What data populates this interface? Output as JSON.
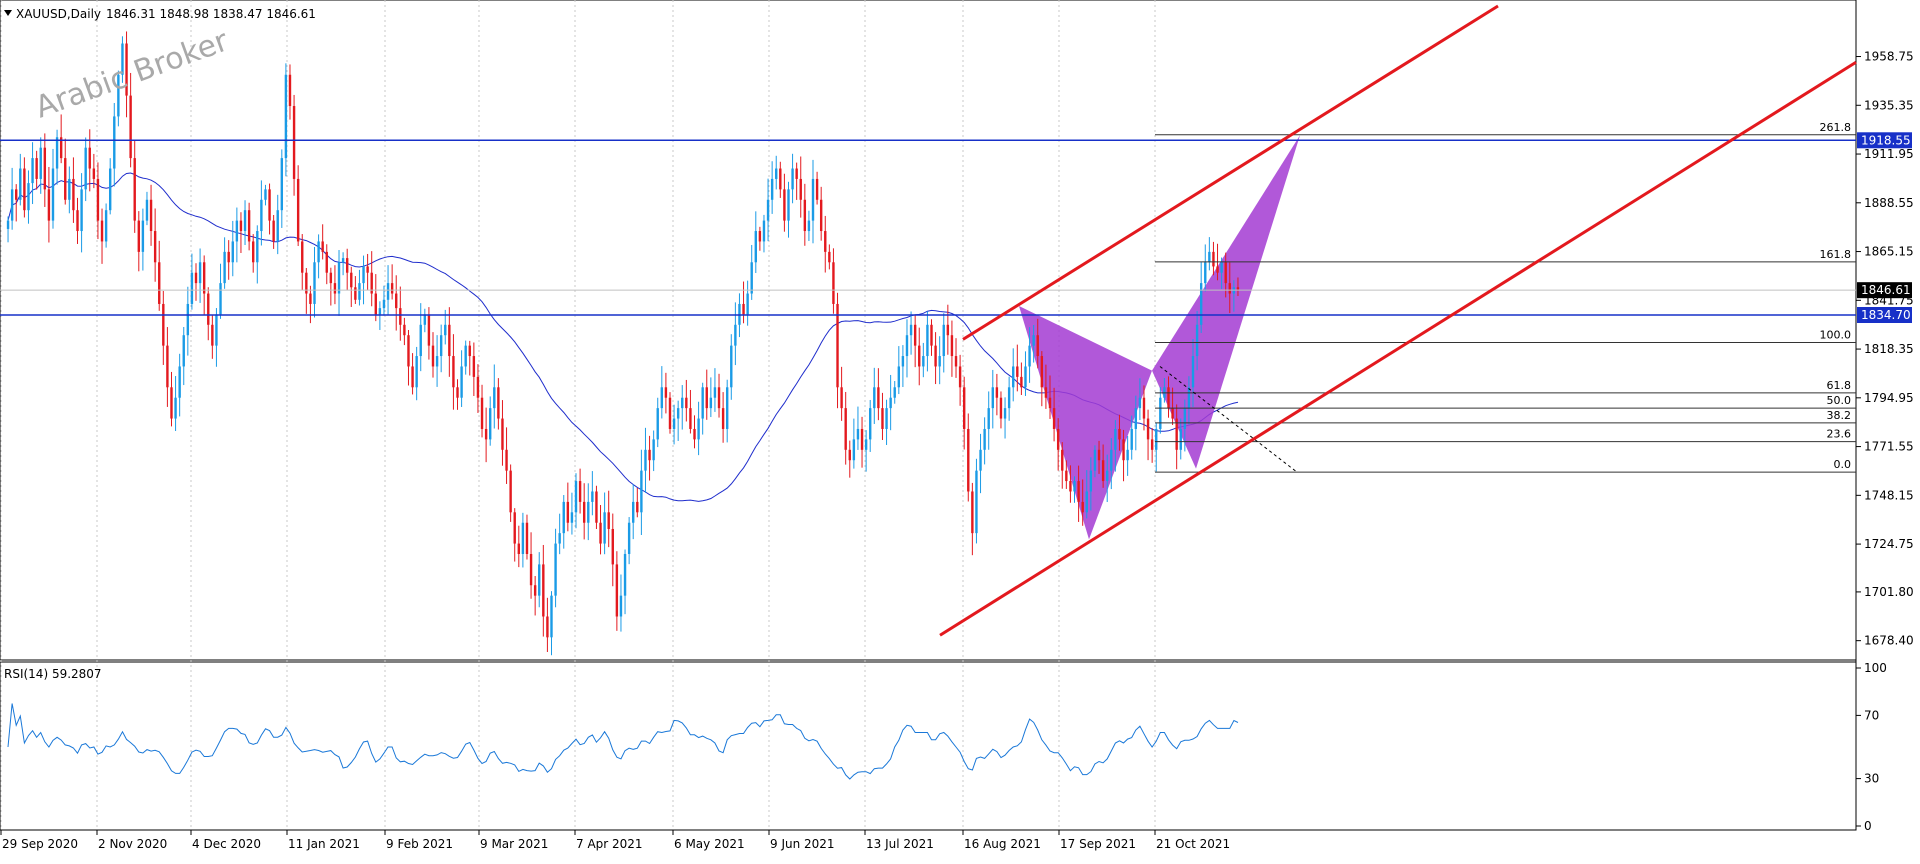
{
  "header": {
    "symbol_label": "XAUUSD,Daily",
    "ohlc": "1846.31 1848.98 1838.47 1846.61"
  },
  "watermark": "Arabic Broker",
  "colors": {
    "bull": "#1a9be6",
    "bear": "#e3191e",
    "ma": "#1f2dcc",
    "channel": "#e3191e",
    "level_line": "#1730c8",
    "pattern_fill": "#a33bd2",
    "rsi": "#1a78d8",
    "fib": "#333333"
  },
  "chart_data": [
    {
      "type": "candlestick",
      "title": "XAUUSD,Daily",
      "x_tick_labels": [
        "29 Sep 2020",
        "2 Nov 2020",
        "4 Dec 2020",
        "11 Jan 2021",
        "9 Feb 2021",
        "9 Mar 2021",
        "7 Apr 2021",
        "6 May 2021",
        "9 Jun 2021",
        "13 Jul 2021",
        "16 Aug 2021",
        "17 Sep 2021",
        "21 Oct 2021"
      ],
      "y_tick_labels": [
        "1958.75",
        "1935.35",
        "1911.95",
        "1888.55",
        "1865.15",
        "1841.75",
        "1818.35",
        "1794.95",
        "1771.55",
        "1748.15",
        "1724.75",
        "1701.80",
        "1678.40"
      ],
      "ylim": [
        1672,
        1983
      ],
      "current_price": "1846.61",
      "horizontal_levels": [
        {
          "label": "1918.55",
          "value": 1918.55
        },
        {
          "label": "1834.70",
          "value": 1834.7
        }
      ],
      "fibonacci": [
        {
          "label": "261.8",
          "value": 1921.2
        },
        {
          "label": "161.8",
          "value": 1860.2
        },
        {
          "label": "100.0",
          "value": 1821.5
        },
        {
          "label": "61.8",
          "value": 1797.3
        },
        {
          "label": "50.0",
          "value": 1790.0
        },
        {
          "label": "38.2",
          "value": 1782.9
        },
        {
          "label": "23.6",
          "value": 1773.9
        },
        {
          "label": "0.0",
          "value": 1759.3
        }
      ],
      "channel": {
        "upper": [
          [
            0.0,
            1818.5
          ],
          [
            1.0,
            1848.0
          ]
        ],
        "lower": [
          [
            0.0,
            1683.0
          ],
          [
            1.0,
            1778.4
          ]
        ],
        "description_units": "bar fraction of channel span"
      },
      "harmonic_pattern": {
        "X": 1839.0,
        "A": 1727.0,
        "B": 1808.0,
        "C": 1761.0,
        "D": 1921.0
      },
      "ohlc_closes": [
        1880,
        1895,
        1890,
        1905,
        1885,
        1898,
        1910,
        1900,
        1915,
        1895,
        1880,
        1905,
        1920,
        1910,
        1890,
        1900,
        1885,
        1875,
        1895,
        1915,
        1905,
        1900,
        1880,
        1870,
        1885,
        1905,
        1930,
        1950,
        1965,
        1940,
        1910,
        1880,
        1865,
        1880,
        1890,
        1875,
        1860,
        1840,
        1820,
        1800,
        1785,
        1795,
        1810,
        1825,
        1840,
        1855,
        1850,
        1860,
        1845,
        1830,
        1820,
        1835,
        1850,
        1865,
        1860,
        1870,
        1880,
        1875,
        1885,
        1870,
        1860,
        1875,
        1890,
        1895,
        1880,
        1870,
        1885,
        1910,
        1950,
        1935,
        1900,
        1870,
        1855,
        1845,
        1840,
        1860,
        1870,
        1865,
        1855,
        1850,
        1845,
        1860,
        1862,
        1855,
        1848,
        1842,
        1850,
        1858,
        1855,
        1845,
        1835,
        1838,
        1842,
        1850,
        1845,
        1838,
        1830,
        1825,
        1810,
        1800,
        1815,
        1830,
        1835,
        1820,
        1810,
        1815,
        1825,
        1830,
        1815,
        1800,
        1795,
        1810,
        1820,
        1815,
        1805,
        1795,
        1780,
        1775,
        1790,
        1800,
        1785,
        1770,
        1760,
        1740,
        1725,
        1720,
        1735,
        1720,
        1705,
        1700,
        1715,
        1690,
        1680,
        1700,
        1725,
        1730,
        1745,
        1735,
        1740,
        1755,
        1745,
        1735,
        1745,
        1750,
        1735,
        1725,
        1740,
        1732,
        1715,
        1690,
        1700,
        1720,
        1735,
        1745,
        1740,
        1760,
        1770,
        1765,
        1775,
        1790,
        1800,
        1795,
        1780,
        1785,
        1790,
        1795,
        1790,
        1780,
        1775,
        1785,
        1800,
        1790,
        1795,
        1800,
        1790,
        1780,
        1800,
        1820,
        1830,
        1840,
        1835,
        1845,
        1860,
        1875,
        1870,
        1880,
        1890,
        1900,
        1905,
        1895,
        1880,
        1895,
        1905,
        1900,
        1890,
        1875,
        1880,
        1900,
        1890,
        1875,
        1865,
        1860,
        1840,
        1800,
        1790,
        1770,
        1765,
        1775,
        1780,
        1770,
        1775,
        1790,
        1800,
        1790,
        1780,
        1790,
        1795,
        1800,
        1810,
        1815,
        1825,
        1830,
        1820,
        1810,
        1815,
        1830,
        1820,
        1810,
        1815,
        1830,
        1825,
        1815,
        1810,
        1800,
        1780,
        1750,
        1730,
        1760,
        1770,
        1780,
        1790,
        1800,
        1795,
        1785,
        1790,
        1800,
        1810,
        1805,
        1800,
        1810,
        1820,
        1825,
        1815,
        1800,
        1795,
        1790,
        1780,
        1770,
        1760,
        1755,
        1750,
        1755,
        1745,
        1740,
        1750,
        1760,
        1770,
        1765,
        1755,
        1760,
        1770,
        1780,
        1775,
        1765,
        1770,
        1780,
        1790,
        1795,
        1785,
        1775,
        1770,
        1780,
        1795,
        1800,
        1790,
        1785,
        1770,
        1780,
        1790,
        1800,
        1815,
        1830,
        1850,
        1860,
        1865,
        1858,
        1855,
        1860,
        1850,
        1845,
        1848,
        1847
      ]
    },
    {
      "type": "line",
      "title": "RSI(14) 59.2807",
      "y_tick_labels": [
        "100",
        "70",
        "30",
        "0"
      ],
      "ylim": [
        0,
        100
      ],
      "current_value": 59.2807
    }
  ]
}
